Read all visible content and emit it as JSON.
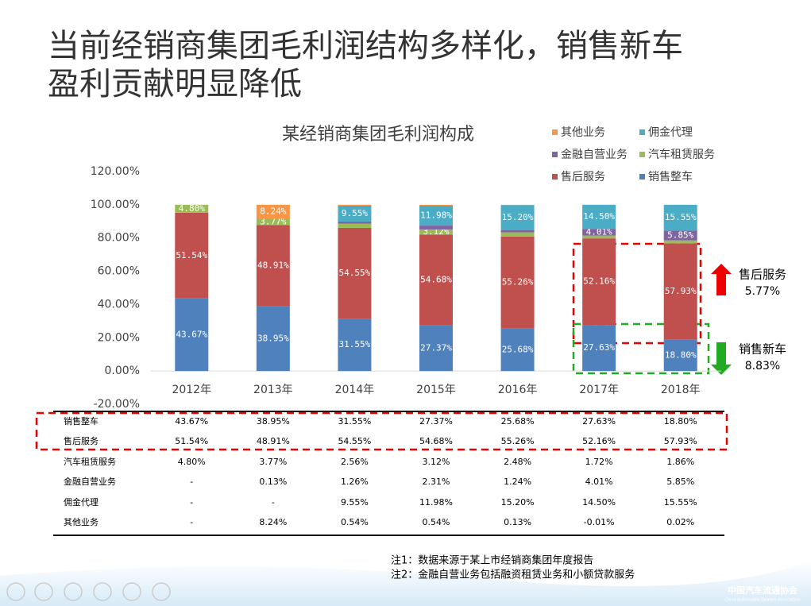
{
  "title": [
    "当前经销商集团毛利润结构多样化，销售新车",
    "盈利贡献明显降低"
  ],
  "chart_data": {
    "type": "bar",
    "stacked": true,
    "title": "某经销商集团毛利润构成",
    "categories": [
      "2012年",
      "2013年",
      "2014年",
      "2015年",
      "2016年",
      "2017年",
      "2018年"
    ],
    "ylim": [
      -20,
      120
    ],
    "yticks": [
      {
        "value": -20,
        "label": "-20.00%"
      },
      {
        "value": 0,
        "label": "0.00%"
      },
      {
        "value": 20,
        "label": "20.00%"
      },
      {
        "value": 40,
        "label": "40.00%"
      },
      {
        "value": 60,
        "label": "60.00%"
      },
      {
        "value": 80,
        "label": "80.00%"
      },
      {
        "value": 100,
        "label": "100.00%"
      },
      {
        "value": 120,
        "label": "120.00%"
      }
    ],
    "grid": false,
    "legend": "top-right",
    "series": [
      {
        "name": "销售整车",
        "color": "#4f81bd",
        "values": [
          43.67,
          38.95,
          31.55,
          27.37,
          25.68,
          27.63,
          18.8
        ],
        "value_labels": [
          "43.67%",
          "38.95%",
          "31.55%",
          "27.37%",
          "25.68%",
          "27.63%",
          "18.80%"
        ]
      },
      {
        "name": "售后服务",
        "color": "#c0504d",
        "values": [
          51.54,
          48.91,
          54.55,
          54.68,
          55.26,
          52.16,
          57.93
        ],
        "value_labels": [
          "51.54%",
          "48.91%",
          "54.55%",
          "54.68%",
          "55.26%",
          "52.16%",
          "57.93%"
        ]
      },
      {
        "name": "汽车租赁服务",
        "color": "#9bbb59",
        "values": [
          4.8,
          3.77,
          2.56,
          3.12,
          2.48,
          1.72,
          1.86
        ],
        "value_labels": [
          "4.80%",
          "3.77%",
          "2.56%",
          "3.12%",
          "2.48%",
          "1.72%",
          "1.86%"
        ]
      },
      {
        "name": "金融自营业务",
        "color": "#8064a2",
        "values": [
          null,
          0.13,
          1.26,
          2.31,
          1.24,
          4.01,
          5.85
        ],
        "value_labels": [
          "-",
          "0.13%",
          "1.26%",
          "2.31%",
          "1.24%",
          "4.01%",
          "5.85%"
        ]
      },
      {
        "name": "佣金代理",
        "color": "#4bacc6",
        "values": [
          null,
          null,
          9.55,
          11.98,
          15.2,
          14.5,
          15.55
        ],
        "value_labels": [
          "-",
          "-",
          "9.55%",
          "11.98%",
          "15.20%",
          "14.50%",
          "15.55%"
        ]
      },
      {
        "name": "其他业务",
        "color": "#f79646",
        "values": [
          null,
          8.24,
          0.54,
          0.54,
          0.13,
          -0.01,
          0.02
        ],
        "value_labels": [
          "-",
          "8.24%",
          "0.54%",
          "0.54%",
          "0.13%",
          "-0.01%",
          "0.02%"
        ]
      }
    ],
    "annotations": [
      {
        "text": "售后服务",
        "value": "5.77%"
      },
      {
        "text": "销售新车",
        "value": "8.83%"
      }
    ]
  },
  "notes": [
    "注1：数据来源于某上市经销商集团年度报告",
    "注2：金融自营业务包括融资租赁业务和小额贷款服务"
  ],
  "logo": [
    "中国汽车流通协会",
    "China Automobile Dealers Association"
  ]
}
